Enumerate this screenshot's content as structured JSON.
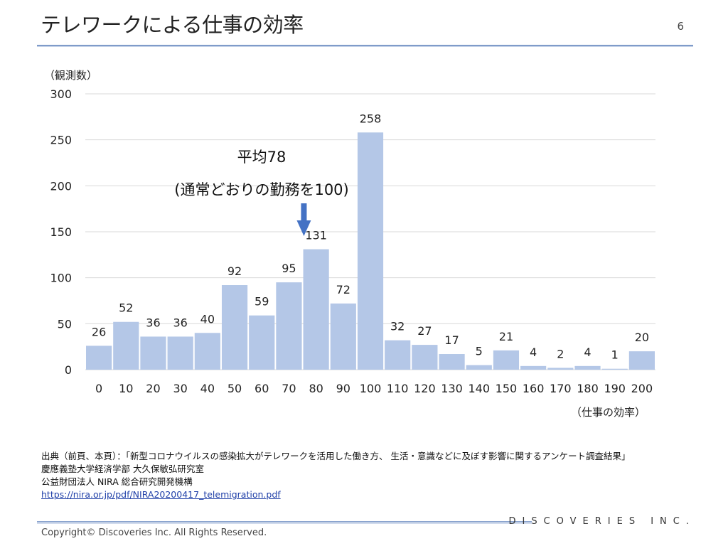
{
  "slide": {
    "title": "テレワークによる仕事の効率",
    "page_number": "6"
  },
  "chart_data": {
    "type": "bar",
    "ylabel": "（観測数）",
    "xlabel": "（仕事の効率）",
    "ylim": [
      0,
      300
    ],
    "yticks": [
      "0",
      "50",
      "100",
      "150",
      "200",
      "250",
      "300"
    ],
    "categories": [
      "0",
      "10",
      "20",
      "30",
      "40",
      "50",
      "60",
      "70",
      "80",
      "90",
      "100",
      "110",
      "120",
      "130",
      "140",
      "150",
      "160",
      "170",
      "180",
      "190",
      "200"
    ],
    "values": [
      26,
      52,
      36,
      36,
      40,
      92,
      59,
      95,
      131,
      72,
      258,
      32,
      27,
      17,
      5,
      21,
      4,
      2,
      4,
      1,
      20
    ],
    "bar_color": "#b4c7e7",
    "grid": true,
    "annotation": {
      "line1": "平均78",
      "line2": "(通常どおりの勤務を100)",
      "arrow_color": "#4472c4",
      "x_value": 78
    }
  },
  "source": {
    "line1": "出典（前頁、本頁）：「新型コロナウイルスの感染拡大がテレワークを活用した働き方、 生活・意識などに及ぼす影響に関するアンケート調査結果」",
    "line2": "慶應義塾大学経済学部 大久保敏弘研究室",
    "line3": "公益財団法人 NIRA 総合研究開発機構",
    "link": "https://nira.or.jp/pdf/NIRA20200417_telemigration.pdf"
  },
  "footer": {
    "brand": "DISCOVERIES INC.",
    "copyright": "Copyright© Discoveries Inc. All Rights Reserved."
  }
}
